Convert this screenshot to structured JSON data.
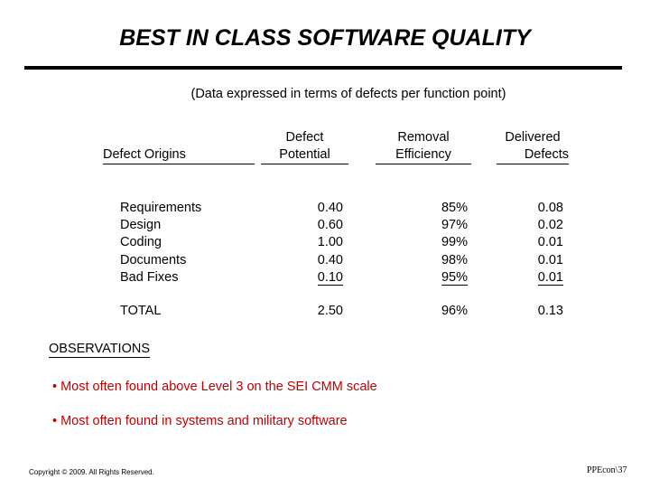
{
  "title": "BEST IN CLASS SOFTWARE QUALITY",
  "subtitle": "(Data expressed in terms of defects per function point)",
  "headers": {
    "origins": "Defect Origins",
    "potential_line1": "Defect",
    "potential_line2": "Potential",
    "removal_line1": "Removal",
    "removal_line2": "Efficiency",
    "delivered_line1": "Delivered",
    "delivered_line2": "Defects"
  },
  "rows": [
    {
      "origin": "Requirements",
      "potential": "0.40",
      "removal": "85%",
      "delivered": "0.08"
    },
    {
      "origin": "Design",
      "potential": "0.60",
      "removal": "97%",
      "delivered": "0.02"
    },
    {
      "origin": "Coding",
      "potential": "1.00",
      "removal": "99%",
      "delivered": "0.01"
    },
    {
      "origin": "Documents",
      "potential": "0.40",
      "removal": "98%",
      "delivered": "0.01"
    },
    {
      "origin": "Bad Fixes",
      "potential": "0.10",
      "removal": "95%",
      "delivered": "0.01"
    }
  ],
  "total": {
    "label": "TOTAL",
    "potential": "2.50",
    "removal": "96%",
    "delivered": "0.13"
  },
  "observations": {
    "heading": "OBSERVATIONS",
    "bullets": [
      "• Most often found above Level 3 on the SEI CMM scale",
      "• Most often found in systems and military software"
    ]
  },
  "footer": {
    "copyright": "Copyright © 2009. All Rights Reserved.",
    "page_ref": "PPEcon\\37"
  },
  "colors": {
    "bullet_text": "#c00000",
    "text": "#000000",
    "background": "#ffffff"
  }
}
